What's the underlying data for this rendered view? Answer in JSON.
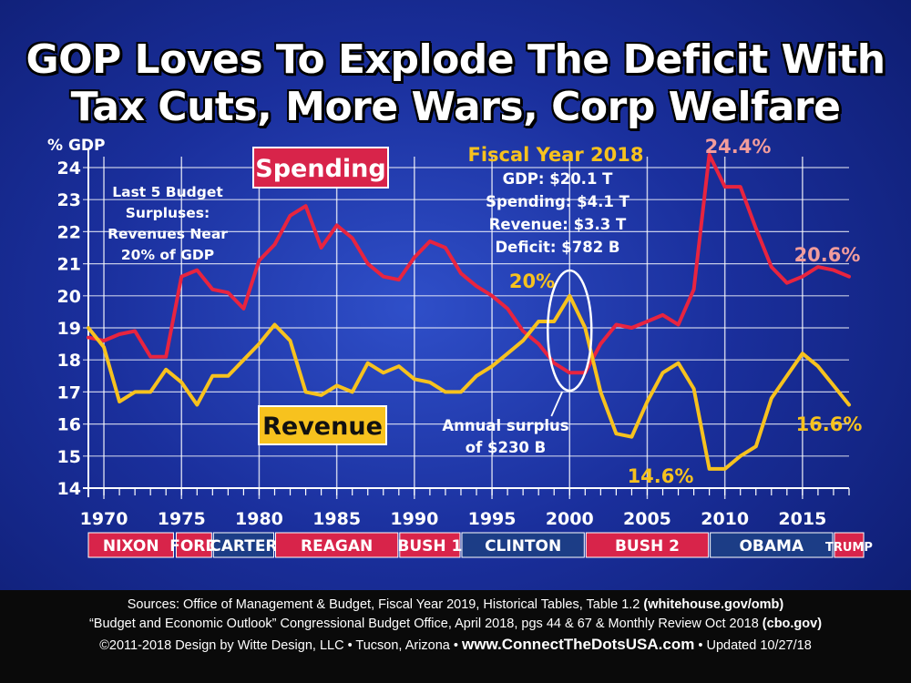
{
  "chart_data": {
    "type": "line",
    "title_line1": "GOP Loves To Explode The Deficit With",
    "title_line2": "Tax Cuts, More Wars, Corp Welfare",
    "ylabel": "% GDP",
    "ylim": [
      14,
      24
    ],
    "yticks": [
      14,
      15,
      16,
      17,
      18,
      19,
      20,
      21,
      22,
      23,
      24
    ],
    "xlim": [
      1969,
      2018
    ],
    "xticks": [
      1970,
      1975,
      1980,
      1985,
      1990,
      1995,
      2000,
      2005,
      2010,
      2015
    ],
    "grid": true,
    "series": [
      {
        "name": "Spending",
        "color": "#e8243f",
        "x": [
          1969,
          1970,
          1971,
          1972,
          1973,
          1974,
          1975,
          1976,
          1977,
          1978,
          1979,
          1980,
          1981,
          1982,
          1983,
          1984,
          1985,
          1986,
          1987,
          1988,
          1989,
          1990,
          1991,
          1992,
          1993,
          1994,
          1995,
          1996,
          1997,
          1998,
          1999,
          2000,
          2001,
          2002,
          2003,
          2004,
          2005,
          2006,
          2007,
          2008,
          2009,
          2010,
          2011,
          2012,
          2013,
          2014,
          2015,
          2016,
          2017,
          2018
        ],
        "values": [
          18.7,
          18.6,
          18.8,
          18.9,
          18.1,
          18.1,
          20.6,
          20.8,
          20.2,
          20.1,
          19.6,
          21.1,
          21.6,
          22.5,
          22.8,
          21.5,
          22.2,
          21.8,
          21.0,
          20.6,
          20.5,
          21.2,
          21.7,
          21.5,
          20.7,
          20.3,
          20.0,
          19.6,
          18.9,
          18.5,
          17.9,
          17.6,
          17.6,
          18.5,
          19.1,
          19.0,
          19.2,
          19.4,
          19.1,
          20.2,
          24.4,
          23.4,
          23.4,
          22.1,
          20.9,
          20.4,
          20.6,
          20.9,
          20.8,
          20.6
        ]
      },
      {
        "name": "Revenue",
        "color": "#f7c21e",
        "x": [
          1969,
          1970,
          1971,
          1972,
          1973,
          1974,
          1975,
          1976,
          1977,
          1978,
          1979,
          1980,
          1981,
          1982,
          1983,
          1984,
          1985,
          1986,
          1987,
          1988,
          1989,
          1990,
          1991,
          1992,
          1993,
          1994,
          1995,
          1996,
          1997,
          1998,
          1999,
          2000,
          2001,
          2002,
          2003,
          2004,
          2005,
          2006,
          2007,
          2008,
          2009,
          2010,
          2011,
          2012,
          2013,
          2014,
          2015,
          2016,
          2017,
          2018
        ],
        "values": [
          19.0,
          18.4,
          16.7,
          17.0,
          17.0,
          17.7,
          17.3,
          16.6,
          17.5,
          17.5,
          18.0,
          18.5,
          19.1,
          18.6,
          17.0,
          16.9,
          17.2,
          17.0,
          17.9,
          17.6,
          17.8,
          17.4,
          17.3,
          17.0,
          17.0,
          17.5,
          17.8,
          18.2,
          18.6,
          19.2,
          19.2,
          20.0,
          19.0,
          17.0,
          15.7,
          15.6,
          16.7,
          17.6,
          17.9,
          17.1,
          14.6,
          14.6,
          15.0,
          15.3,
          16.8,
          17.5,
          18.2,
          17.8,
          17.2,
          16.6
        ]
      }
    ],
    "series_labels": {
      "spending": "Spending",
      "revenue": "Revenue"
    },
    "annotations": {
      "surplus_note": [
        "Last 5 Budget",
        "Surpluses:",
        "Revenues Near",
        "20% of GDP"
      ],
      "fy2018_title": "Fiscal Year 2018",
      "fy2018_lines": [
        "GDP: $20.1 T",
        "Spending: $4.1 T",
        "Revenue: $3.3 T",
        "Deficit: $782 B"
      ],
      "annual_surplus": [
        "Annual surplus",
        "of $230 B"
      ],
      "surplus_ellipse_year": 2000,
      "peak_revenue": "20%",
      "peak_spending": "24.4%",
      "spending_2018": "20.6%",
      "revenue_low": "14.6%",
      "revenue_2018": "16.6%"
    },
    "presidents": [
      {
        "name": "NIXON",
        "start": 1969,
        "end": 1974.6,
        "party": "R"
      },
      {
        "name": "FORD",
        "start": 1974.6,
        "end": 1977,
        "party": "R"
      },
      {
        "name": "CARTER",
        "start": 1977,
        "end": 1981,
        "party": "D"
      },
      {
        "name": "REAGAN",
        "start": 1981,
        "end": 1989,
        "party": "R"
      },
      {
        "name": "BUSH 1",
        "start": 1989,
        "end": 1993,
        "party": "R"
      },
      {
        "name": "CLINTON",
        "start": 1993,
        "end": 2001,
        "party": "D"
      },
      {
        "name": "BUSH 2",
        "start": 2001,
        "end": 2009,
        "party": "R"
      },
      {
        "name": "OBAMA",
        "start": 2009,
        "end": 2017,
        "party": "D"
      },
      {
        "name": "TRUMP",
        "start": 2017,
        "end": 2019,
        "party": "R"
      }
    ],
    "party_colors": {
      "R": "#d8244a",
      "D": "#1c3d86"
    }
  },
  "footer": {
    "sources_line1_text": "Sources: Office of Management & Budget, Fiscal Year 2019, Historical Tables, Table 1.2 ",
    "sources_line1_bold": "(whitehouse.gov/omb)",
    "sources_line2_text": "“Budget and Economic Outlook” Congressional Budget Office, April 2018, pgs 44 & 67 & Monthly Review Oct 2018 ",
    "sources_line2_bold": "(cbo.gov)",
    "credit": "©2011-2018 Design by Witte Design, LLC • Tucson, Arizona",
    "website": "www.ConnectTheDotsUSA.com",
    "updated": "Updated 10/27/18"
  }
}
